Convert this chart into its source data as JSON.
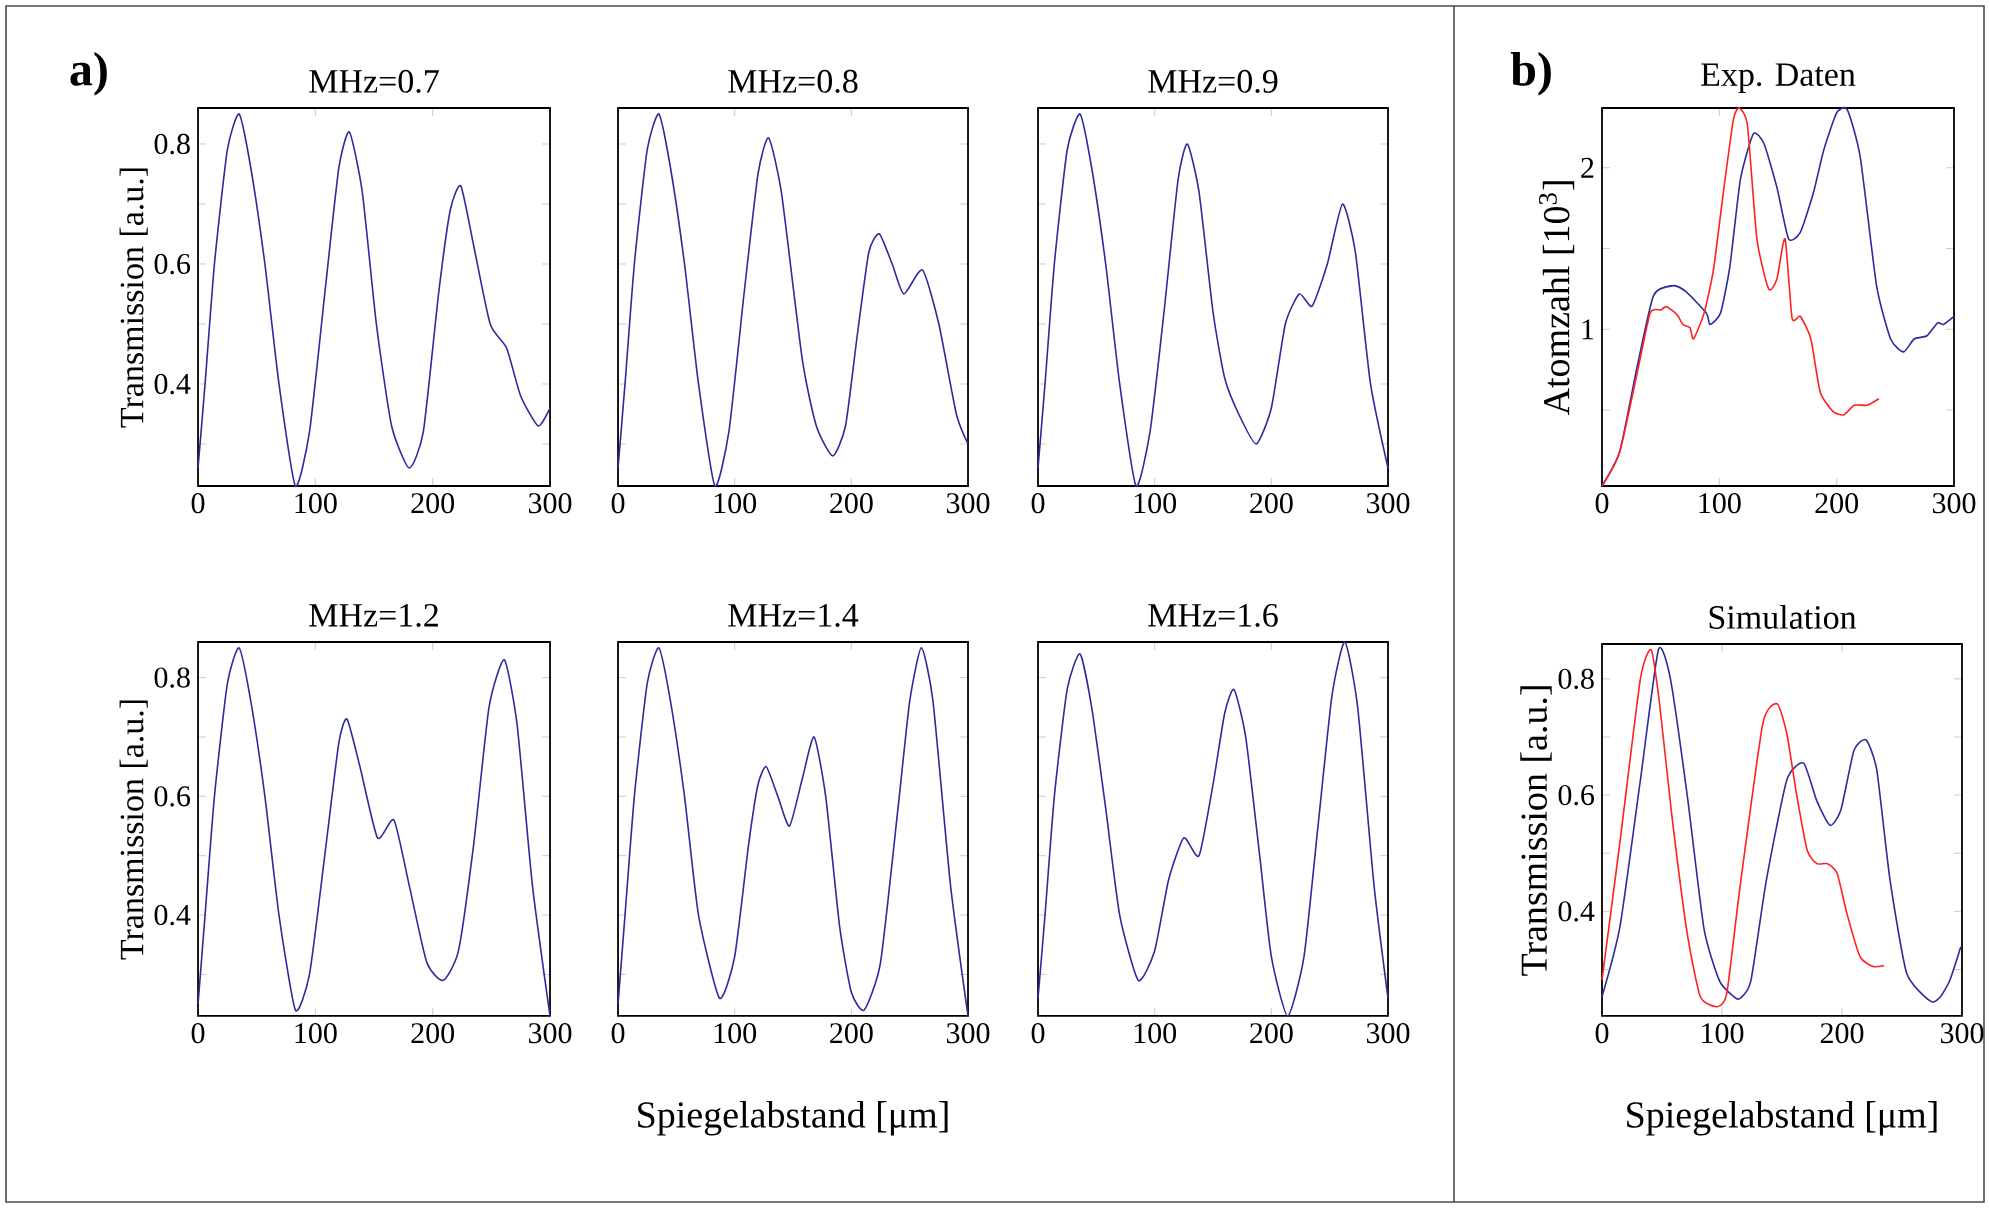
{
  "chart_data": [
    {
      "type": "line",
      "title": "MHz=0.7",
      "ylabel": "Transmission [a.u.]",
      "annotations": [
        "a)"
      ],
      "xlim": [
        0,
        300
      ],
      "ylim": [
        0.23,
        0.86
      ],
      "xticks": [
        0,
        100,
        200,
        300
      ],
      "yticks": [
        {
          "value": 0.3,
          "label": null
        },
        0.4,
        {
          "value": 0.5,
          "label": null
        },
        0.6,
        {
          "value": 0.7,
          "label": null
        },
        0.8
      ],
      "x": [
        0,
        6,
        14,
        25,
        35,
        45,
        57,
        69,
        83,
        95,
        108,
        120,
        129,
        140,
        152,
        165,
        180,
        192,
        205,
        215,
        224,
        235,
        249,
        263,
        275,
        290,
        300
      ],
      "series": [
        {
          "color": "#2b2b9e",
          "values": [
            0.26,
            0.4,
            0.6,
            0.79,
            0.85,
            0.76,
            0.6,
            0.4,
            0.23,
            0.32,
            0.55,
            0.76,
            0.82,
            0.72,
            0.5,
            0.33,
            0.26,
            0.32,
            0.55,
            0.69,
            0.73,
            0.63,
            0.5,
            0.46,
            0.38,
            0.33,
            0.36
          ]
        }
      ]
    },
    {
      "type": "line",
      "title": "MHz=0.8",
      "tick_labels": "x",
      "xlim": [
        0,
        300
      ],
      "ylim": [
        0.23,
        0.86
      ],
      "xticks": [
        0,
        100,
        200,
        300
      ],
      "yticks": [
        {
          "value": 0.3,
          "label": null
        },
        {
          "value": 0.4,
          "label": null
        },
        {
          "value": 0.5,
          "label": null
        },
        {
          "value": 0.6,
          "label": null
        },
        {
          "value": 0.7,
          "label": null
        },
        {
          "value": 0.8,
          "label": null
        }
      ],
      "x": [
        0,
        6,
        14,
        25,
        35,
        45,
        57,
        69,
        83,
        95,
        108,
        120,
        129,
        140,
        158,
        170,
        184,
        195,
        205,
        215,
        224,
        235,
        245,
        261,
        275,
        290,
        300
      ],
      "series": [
        {
          "color": "#2b2b9e",
          "values": [
            0.26,
            0.4,
            0.6,
            0.79,
            0.85,
            0.76,
            0.6,
            0.4,
            0.23,
            0.32,
            0.55,
            0.75,
            0.81,
            0.72,
            0.44,
            0.33,
            0.28,
            0.33,
            0.48,
            0.62,
            0.65,
            0.6,
            0.55,
            0.59,
            0.5,
            0.35,
            0.3
          ]
        }
      ]
    },
    {
      "type": "line",
      "title": "MHz=0.9",
      "tick_labels": "x",
      "xlim": [
        0,
        300
      ],
      "ylim": [
        0.23,
        0.86
      ],
      "xticks": [
        0,
        100,
        200,
        300
      ],
      "yticks": [
        {
          "value": 0.3,
          "label": null
        },
        {
          "value": 0.4,
          "label": null
        },
        {
          "value": 0.5,
          "label": null
        },
        {
          "value": 0.6,
          "label": null
        },
        {
          "value": 0.7,
          "label": null
        },
        {
          "value": 0.8,
          "label": null
        }
      ],
      "x": [
        0,
        6,
        14,
        25,
        36,
        46,
        58,
        70,
        84,
        96,
        108,
        120,
        128,
        138,
        150,
        160,
        172,
        187,
        200,
        212,
        224,
        235,
        248,
        261,
        272,
        285,
        300
      ],
      "series": [
        {
          "color": "#2b2b9e",
          "values": [
            0.26,
            0.4,
            0.6,
            0.79,
            0.85,
            0.76,
            0.6,
            0.4,
            0.23,
            0.32,
            0.52,
            0.74,
            0.8,
            0.72,
            0.52,
            0.41,
            0.35,
            0.3,
            0.36,
            0.5,
            0.55,
            0.53,
            0.6,
            0.7,
            0.62,
            0.4,
            0.26
          ]
        }
      ]
    },
    {
      "type": "line",
      "title": "MHz=1.2",
      "ylabel": "Transmission [a.u.]",
      "xlim": [
        0,
        300
      ],
      "ylim": [
        0.23,
        0.86
      ],
      "xticks": [
        0,
        100,
        200,
        300
      ],
      "yticks": [
        {
          "value": 0.3,
          "label": null
        },
        0.4,
        {
          "value": 0.5,
          "label": null
        },
        0.6,
        {
          "value": 0.7,
          "label": null
        },
        0.8
      ],
      "x": [
        0,
        6,
        14,
        25,
        35,
        45,
        57,
        69,
        83,
        95,
        108,
        120,
        127,
        138,
        153,
        167,
        180,
        195,
        209,
        222,
        235,
        248,
        261,
        272,
        285,
        300
      ],
      "series": [
        {
          "color": "#2b2b9e",
          "values": [
            0.25,
            0.4,
            0.6,
            0.79,
            0.85,
            0.76,
            0.6,
            0.4,
            0.24,
            0.3,
            0.5,
            0.69,
            0.73,
            0.65,
            0.53,
            0.56,
            0.45,
            0.32,
            0.29,
            0.34,
            0.52,
            0.75,
            0.83,
            0.72,
            0.45,
            0.23
          ]
        }
      ]
    },
    {
      "type": "line",
      "title": "MHz=1.4",
      "xlabel": "Spiegelabstand [μm]",
      "tick_labels": "x",
      "xlim": [
        0,
        300
      ],
      "ylim": [
        0.23,
        0.86
      ],
      "xticks": [
        0,
        100,
        200,
        300
      ],
      "yticks": [
        {
          "value": 0.3,
          "label": null
        },
        {
          "value": 0.4,
          "label": null
        },
        {
          "value": 0.5,
          "label": null
        },
        {
          "value": 0.6,
          "label": null
        },
        {
          "value": 0.7,
          "label": null
        },
        {
          "value": 0.8,
          "label": null
        }
      ],
      "x": [
        0,
        6,
        14,
        25,
        35,
        45,
        57,
        69,
        87,
        100,
        112,
        120,
        127,
        137,
        147,
        158,
        168,
        178,
        190,
        200,
        211,
        225,
        240,
        250,
        260,
        270,
        285,
        300
      ],
      "series": [
        {
          "color": "#2b2b9e",
          "values": [
            0.25,
            0.4,
            0.6,
            0.79,
            0.85,
            0.76,
            0.6,
            0.4,
            0.26,
            0.33,
            0.52,
            0.62,
            0.65,
            0.6,
            0.55,
            0.63,
            0.7,
            0.6,
            0.38,
            0.27,
            0.24,
            0.32,
            0.58,
            0.76,
            0.85,
            0.76,
            0.45,
            0.23
          ]
        }
      ]
    },
    {
      "type": "line",
      "title": "MHz=1.6",
      "tick_labels": "x",
      "xlim": [
        0,
        300
      ],
      "ylim": [
        0.23,
        0.86
      ],
      "xticks": [
        0,
        100,
        200,
        300
      ],
      "yticks": [
        {
          "value": 0.3,
          "label": null
        },
        {
          "value": 0.4,
          "label": null
        },
        {
          "value": 0.5,
          "label": null
        },
        {
          "value": 0.6,
          "label": null
        },
        {
          "value": 0.7,
          "label": null
        },
        {
          "value": 0.8,
          "label": null
        }
      ],
      "x": [
        0,
        6,
        14,
        25,
        36,
        46,
        58,
        70,
        86,
        100,
        112,
        125,
        138,
        150,
        160,
        168,
        178,
        190,
        200,
        214,
        228,
        240,
        252,
        263,
        274,
        288,
        300
      ],
      "series": [
        {
          "color": "#2b2b9e",
          "values": [
            0.26,
            0.4,
            0.6,
            0.78,
            0.84,
            0.75,
            0.58,
            0.4,
            0.29,
            0.34,
            0.46,
            0.53,
            0.5,
            0.62,
            0.74,
            0.78,
            0.7,
            0.5,
            0.33,
            0.23,
            0.33,
            0.55,
            0.77,
            0.86,
            0.75,
            0.45,
            0.26
          ]
        }
      ]
    },
    {
      "type": "line",
      "title": "Exp. Daten",
      "ylabel": "Atomzahl [10$^{3}$]",
      "annotations": [
        "b)"
      ],
      "xlim": [
        0,
        300
      ],
      "ylim": [
        0.03,
        2.37
      ],
      "xticks": [
        0,
        100,
        200,
        300
      ],
      "yticks": [
        {
          "value": 0.5,
          "label": null
        },
        1,
        {
          "value": 1.5,
          "label": null
        },
        2
      ],
      "series": [
        {
          "color": "#2b2b9e",
          "x": [
            0,
            15,
            30,
            44,
            61,
            72,
            89,
            92,
            101,
            109,
            118,
            129,
            138,
            149,
            159,
            169,
            180,
            189,
            200,
            209,
            220,
            234,
            246,
            257,
            266,
            277,
            286,
            291,
            300
          ],
          "values": [
            0.03,
            0.24,
            0.77,
            1.21,
            1.27,
            1.23,
            1.1,
            1.03,
            1.1,
            1.39,
            1.93,
            2.21,
            2.15,
            1.88,
            1.56,
            1.6,
            1.84,
            2.11,
            2.34,
            2.36,
            2.07,
            1.27,
            0.94,
            0.86,
            0.94,
            0.96,
            1.04,
            1.03,
            1.08
          ]
        },
        {
          "color": "#ff2020",
          "x": [
            0,
            15,
            30,
            41,
            50,
            55,
            64,
            69,
            75,
            78,
            87,
            95,
            104,
            112,
            117,
            124,
            132,
            142,
            149,
            156,
            162,
            169,
            178,
            186,
            197,
            206,
            215,
            226,
            236
          ],
          "values": [
            0.03,
            0.24,
            0.73,
            1.1,
            1.12,
            1.14,
            1.09,
            1.03,
            1.01,
            0.94,
            1.1,
            1.37,
            1.88,
            2.3,
            2.37,
            2.26,
            1.56,
            1.25,
            1.31,
            1.56,
            1.07,
            1.08,
            0.94,
            0.61,
            0.49,
            0.47,
            0.53,
            0.53,
            0.57
          ]
        }
      ]
    },
    {
      "type": "line",
      "title": "Simulation",
      "ylabel": "Transmission [a.u.]",
      "xlabel": "Spiegelabstand [μm]",
      "xlim": [
        0,
        300
      ],
      "ylim": [
        0.22,
        0.86
      ],
      "xticks": [
        0,
        100,
        200,
        300
      ],
      "yticks": [
        {
          "value": 0.3,
          "label": null
        },
        0.4,
        {
          "value": 0.5,
          "label": null
        },
        0.6,
        {
          "value": 0.7,
          "label": null
        },
        0.8
      ],
      "series": [
        {
          "color": "#2b2b9e",
          "x": [
            0,
            15,
            32,
            47,
            57,
            71,
            85,
            98,
            110,
            115,
            124,
            137,
            154,
            168,
            179,
            190,
            199,
            210,
            220,
            229,
            240,
            254,
            274,
            282,
            290,
            299
          ],
          "values": [
            0.253,
            0.374,
            0.626,
            0.85,
            0.8,
            0.6,
            0.37,
            0.28,
            0.253,
            0.25,
            0.28,
            0.454,
            0.626,
            0.655,
            0.59,
            0.548,
            0.574,
            0.677,
            0.695,
            0.643,
            0.454,
            0.293,
            0.245,
            0.253,
            0.282,
            0.339
          ]
        },
        {
          "color": "#ff2020",
          "x": [
            0,
            15,
            32,
            41,
            48,
            58,
            71,
            82,
            96,
            104,
            115,
            134,
            146,
            154,
            162,
            171,
            179,
            188,
            196,
            204,
            215,
            226,
            235
          ],
          "values": [
            0.282,
            0.52,
            0.8,
            0.85,
            0.757,
            0.568,
            0.362,
            0.253,
            0.236,
            0.259,
            0.442,
            0.723,
            0.757,
            0.706,
            0.603,
            0.505,
            0.482,
            0.482,
            0.465,
            0.397,
            0.322,
            0.305,
            0.307
          ]
        }
      ]
    }
  ]
}
